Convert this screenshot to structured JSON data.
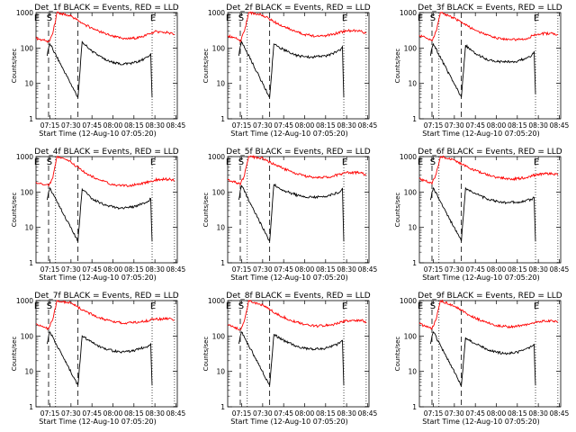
{
  "chart_data": [
    {
      "type": "line",
      "title": "Det_1f BLACK = Events, RED = LLD",
      "ylabel": "Counts/sec",
      "xlabel": "Start Time (12-Aug-10 07:05:20)",
      "yscale": "log",
      "ylim": [
        1,
        1000
      ],
      "x_ticks": [
        "07:15",
        "07:30",
        "07:45",
        "08:00",
        "08:15",
        "08:30",
        "08:45"
      ],
      "y_ticks": [
        "1",
        "10",
        "100",
        "1000"
      ],
      "markers": [
        {
          "label": "E",
          "time": "07:05"
        },
        {
          "label": "S",
          "time": "07:14"
        },
        {
          "label": "E",
          "time": "08:28"
        }
      ],
      "series": [
        {
          "name": "RED = LLD",
          "color": "#ff0000",
          "x": [
            "07:05",
            "07:09",
            "07:12",
            "07:14",
            "07:17",
            "07:20",
            "07:30",
            "07:40",
            "07:50",
            "08:00",
            "08:10",
            "08:20",
            "08:30",
            "08:40",
            "08:44"
          ],
          "y": [
            190,
            170,
            160,
            150,
            260,
            1000,
            800,
            450,
            300,
            210,
            180,
            200,
            290,
            270,
            240
          ]
        },
        {
          "name": "BLACK = Events",
          "color": "#000000",
          "x": [
            "07:13",
            "07:14",
            "07:15",
            "07:35",
            "07:38",
            "07:45",
            "07:55",
            "08:05",
            "08:15",
            "08:20",
            "08:25",
            "08:27",
            "08:28"
          ],
          "y": [
            60,
            100,
            130,
            4,
            150,
            80,
            45,
            35,
            38,
            45,
            55,
            70,
            4
          ]
        }
      ]
    },
    {
      "type": "line",
      "title": "Det_2f BLACK = Events, RED = LLD",
      "ylabel": "Counts/sec",
      "xlabel": "Start Time (12-Aug-10 07:05:20)",
      "yscale": "log",
      "ylim": [
        1,
        1000
      ],
      "x_ticks": [
        "07:15",
        "07:30",
        "07:45",
        "08:00",
        "08:15",
        "08:30",
        "08:45"
      ],
      "y_ticks": [
        "1",
        "10",
        "100",
        "1000"
      ],
      "markers": [
        {
          "label": "E",
          "time": "07:05"
        },
        {
          "label": "S",
          "time": "07:14"
        },
        {
          "label": "E",
          "time": "08:28"
        }
      ],
      "series": [
        {
          "name": "RED = LLD",
          "color": "#ff0000",
          "x": [
            "07:05",
            "07:09",
            "07:12",
            "07:14",
            "07:17",
            "07:20",
            "07:30",
            "07:40",
            "07:50",
            "08:00",
            "08:10",
            "08:20",
            "08:30",
            "08:40",
            "08:44"
          ],
          "y": [
            220,
            200,
            180,
            150,
            300,
            1000,
            850,
            500,
            330,
            240,
            210,
            240,
            310,
            300,
            260
          ]
        },
        {
          "name": "BLACK = Events",
          "color": "#000000",
          "x": [
            "07:13",
            "07:14",
            "07:15",
            "07:35",
            "07:38",
            "07:45",
            "07:55",
            "08:05",
            "08:15",
            "08:20",
            "08:25",
            "08:27",
            "08:28"
          ],
          "y": [
            60,
            110,
            150,
            4,
            130,
            90,
            60,
            55,
            60,
            70,
            85,
            110,
            4
          ]
        }
      ]
    },
    {
      "type": "line",
      "title": "Det_3f BLACK = Events, RED = LLD",
      "ylabel": "Counts/sec",
      "xlabel": "Start Time (12-Aug-10 07:05:20)",
      "yscale": "log",
      "ylim": [
        1,
        1000
      ],
      "x_ticks": [
        "07:15",
        "07:30",
        "07:45",
        "08:00",
        "08:15",
        "08:30",
        "08:45"
      ],
      "y_ticks": [
        "1",
        "10",
        "100",
        "1000"
      ],
      "markers": [
        {
          "label": "E",
          "time": "07:05"
        },
        {
          "label": "S",
          "time": "07:14"
        },
        {
          "label": "E",
          "time": "08:28"
        }
      ],
      "series": [
        {
          "name": "RED = LLD",
          "color": "#ff0000",
          "x": [
            "07:05",
            "07:09",
            "07:12",
            "07:14",
            "07:17",
            "07:20",
            "07:30",
            "07:40",
            "07:50",
            "08:00",
            "08:10",
            "08:20",
            "08:30",
            "08:40",
            "08:44"
          ],
          "y": [
            230,
            200,
            170,
            160,
            300,
            1000,
            700,
            400,
            260,
            190,
            170,
            180,
            250,
            260,
            240
          ]
        },
        {
          "name": "BLACK = Events",
          "color": "#000000",
          "x": [
            "07:13",
            "07:14",
            "07:15",
            "07:35",
            "07:38",
            "07:45",
            "07:55",
            "08:05",
            "08:15",
            "08:20",
            "08:25",
            "08:27",
            "08:28"
          ],
          "y": [
            60,
            100,
            130,
            4,
            120,
            70,
            45,
            40,
            42,
            50,
            60,
            80,
            5
          ]
        }
      ]
    },
    {
      "type": "line",
      "title": "Det_4f BLACK = Events, RED = LLD",
      "ylabel": "Counts/sec",
      "xlabel": "Start Time (12-Aug-10 07:05:20)",
      "yscale": "log",
      "ylim": [
        1,
        1000
      ],
      "x_ticks": [
        "07:15",
        "07:30",
        "07:45",
        "08:00",
        "08:15",
        "08:30",
        "08:45"
      ],
      "y_ticks": [
        "1",
        "10",
        "100",
        "1000"
      ],
      "markers": [
        {
          "label": "E",
          "time": "07:05"
        },
        {
          "label": "S",
          "time": "07:14"
        },
        {
          "label": "E",
          "time": "08:28"
        }
      ],
      "series": [
        {
          "name": "RED = LLD",
          "color": "#ff0000",
          "x": [
            "07:05",
            "07:09",
            "07:12",
            "07:14",
            "07:17",
            "07:20",
            "07:30",
            "07:40",
            "07:50",
            "08:00",
            "08:10",
            "08:20",
            "08:30",
            "08:40",
            "08:44"
          ],
          "y": [
            190,
            170,
            160,
            150,
            250,
            1000,
            700,
            350,
            220,
            160,
            150,
            170,
            220,
            230,
            210
          ]
        },
        {
          "name": "BLACK = Events",
          "color": "#000000",
          "x": [
            "07:13",
            "07:14",
            "07:15",
            "07:35",
            "07:38",
            "07:45",
            "07:55",
            "08:05",
            "08:15",
            "08:20",
            "08:25",
            "08:27",
            "08:28"
          ],
          "y": [
            60,
            100,
            130,
            4,
            120,
            65,
            42,
            35,
            38,
            45,
            55,
            65,
            4
          ]
        }
      ]
    },
    {
      "type": "line",
      "title": "Det_5f BLACK = Events, RED = LLD",
      "ylabel": "Counts/sec",
      "xlabel": "Start Time (12-Aug-10 07:05:20)",
      "yscale": "log",
      "ylim": [
        1,
        1000
      ],
      "x_ticks": [
        "07:15",
        "07:30",
        "07:45",
        "08:00",
        "08:15",
        "08:30",
        "08:45"
      ],
      "y_ticks": [
        "1",
        "10",
        "100",
        "1000"
      ],
      "markers": [
        {
          "label": "E",
          "time": "07:05"
        },
        {
          "label": "S",
          "time": "07:14"
        },
        {
          "label": "E",
          "time": "08:28"
        }
      ],
      "series": [
        {
          "name": "RED = LLD",
          "color": "#ff0000",
          "x": [
            "07:05",
            "07:09",
            "07:12",
            "07:14",
            "07:17",
            "07:20",
            "07:30",
            "07:40",
            "07:50",
            "08:00",
            "08:10",
            "08:20",
            "08:30",
            "08:40",
            "08:44"
          ],
          "y": [
            220,
            200,
            180,
            160,
            300,
            1000,
            900,
            550,
            380,
            280,
            250,
            280,
            350,
            350,
            300
          ]
        },
        {
          "name": "BLACK = Events",
          "color": "#000000",
          "x": [
            "07:13",
            "07:14",
            "07:15",
            "07:35",
            "07:38",
            "07:45",
            "07:55",
            "08:05",
            "08:15",
            "08:20",
            "08:25",
            "08:27",
            "08:28"
          ],
          "y": [
            60,
            110,
            150,
            4,
            160,
            110,
            80,
            70,
            75,
            85,
            100,
            130,
            4
          ]
        }
      ]
    },
    {
      "type": "line",
      "title": "Det_6f BLACK = Events, RED = LLD",
      "ylabel": "Counts/sec",
      "xlabel": "Start Time (12-Aug-10 07:05:20)",
      "yscale": "log",
      "ylim": [
        1,
        1000
      ],
      "x_ticks": [
        "07:15",
        "07:30",
        "07:45",
        "08:00",
        "08:15",
        "08:30",
        "08:45"
      ],
      "y_ticks": [
        "1",
        "10",
        "100",
        "1000"
      ],
      "markers": [
        {
          "label": "E",
          "time": "07:05"
        },
        {
          "label": "S",
          "time": "07:14"
        },
        {
          "label": "E",
          "time": "08:28"
        }
      ],
      "series": [
        {
          "name": "RED = LLD",
          "color": "#ff0000",
          "x": [
            "07:05",
            "07:09",
            "07:12",
            "07:14",
            "07:17",
            "07:20",
            "07:30",
            "07:40",
            "07:50",
            "08:00",
            "08:10",
            "08:20",
            "08:30",
            "08:40",
            "08:44"
          ],
          "y": [
            240,
            210,
            190,
            170,
            320,
            1000,
            800,
            480,
            340,
            260,
            230,
            250,
            320,
            330,
            300
          ]
        },
        {
          "name": "BLACK = Events",
          "color": "#000000",
          "x": [
            "07:13",
            "07:14",
            "07:15",
            "07:35",
            "07:38",
            "07:45",
            "07:55",
            "08:05",
            "08:15",
            "08:20",
            "08:25",
            "08:27",
            "08:28"
          ],
          "y": [
            60,
            100,
            130,
            4,
            130,
            90,
            60,
            50,
            52,
            55,
            62,
            70,
            4
          ]
        }
      ]
    },
    {
      "type": "line",
      "title": "Det_7f BLACK = Events, RED = LLD",
      "ylabel": "Counts/sec",
      "xlabel": "Start Time (12-Aug-10 07:05:20)",
      "yscale": "log",
      "ylim": [
        1,
        1000
      ],
      "x_ticks": [
        "07:15",
        "07:30",
        "07:45",
        "08:00",
        "08:15",
        "08:30",
        "08:45"
      ],
      "y_ticks": [
        "1",
        "10",
        "100",
        "1000"
      ],
      "markers": [
        {
          "label": "E",
          "time": "07:05"
        },
        {
          "label": "S",
          "time": "07:14"
        },
        {
          "label": "E",
          "time": "08:28"
        }
      ],
      "series": [
        {
          "name": "RED = LLD",
          "color": "#ff0000",
          "x": [
            "07:05",
            "07:09",
            "07:12",
            "07:14",
            "07:17",
            "07:20",
            "07:30",
            "07:40",
            "07:50",
            "08:00",
            "08:10",
            "08:20",
            "08:30",
            "08:40",
            "08:44"
          ],
          "y": [
            220,
            190,
            170,
            160,
            300,
            1000,
            850,
            500,
            330,
            250,
            230,
            250,
            300,
            310,
            280
          ]
        },
        {
          "name": "BLACK = Events",
          "color": "#000000",
          "x": [
            "07:13",
            "07:14",
            "07:15",
            "07:35",
            "07:38",
            "07:45",
            "07:55",
            "08:05",
            "08:15",
            "08:20",
            "08:25",
            "08:27",
            "08:28"
          ],
          "y": [
            60,
            100,
            130,
            4,
            100,
            65,
            42,
            35,
            38,
            45,
            52,
            60,
            4
          ]
        }
      ]
    },
    {
      "type": "line",
      "title": "Det_8f BLACK = Events, RED = LLD",
      "ylabel": "Counts/sec",
      "xlabel": "Start Time (12-Aug-10 07:05:20)",
      "yscale": "log",
      "ylim": [
        1,
        1000
      ],
      "x_ticks": [
        "07:15",
        "07:30",
        "07:45",
        "08:00",
        "08:15",
        "08:30",
        "08:45"
      ],
      "y_ticks": [
        "1",
        "10",
        "100",
        "1000"
      ],
      "markers": [
        {
          "label": "E",
          "time": "07:05"
        },
        {
          "label": "S",
          "time": "07:14"
        },
        {
          "label": "E",
          "time": "08:28"
        }
      ],
      "series": [
        {
          "name": "RED = LLD",
          "color": "#ff0000",
          "x": [
            "07:05",
            "07:09",
            "07:12",
            "07:14",
            "07:17",
            "07:20",
            "07:30",
            "07:40",
            "07:50",
            "08:00",
            "08:10",
            "08:20",
            "08:30",
            "08:40",
            "08:44"
          ],
          "y": [
            200,
            180,
            160,
            150,
            280,
            1000,
            750,
            420,
            280,
            210,
            190,
            210,
            270,
            280,
            250
          ]
        },
        {
          "name": "BLACK = Events",
          "color": "#000000",
          "x": [
            "07:13",
            "07:14",
            "07:15",
            "07:35",
            "07:38",
            "07:45",
            "07:55",
            "08:05",
            "08:15",
            "08:20",
            "08:25",
            "08:27",
            "08:28"
          ],
          "y": [
            60,
            100,
            130,
            4,
            110,
            75,
            50,
            42,
            45,
            52,
            62,
            75,
            4
          ]
        }
      ]
    },
    {
      "type": "line",
      "title": "Det_9f BLACK = Events, RED = LLD",
      "ylabel": "Counts/sec",
      "xlabel": "Start Time (12-Aug-10 07:05:20)",
      "yscale": "log",
      "ylim": [
        1,
        1000
      ],
      "x_ticks": [
        "07:15",
        "07:30",
        "07:45",
        "08:00",
        "08:15",
        "08:30",
        "08:45"
      ],
      "y_ticks": [
        "1",
        "10",
        "100",
        "1000"
      ],
      "markers": [
        {
          "label": "E",
          "time": "07:05"
        },
        {
          "label": "S",
          "time": "07:14"
        },
        {
          "label": "E",
          "time": "08:28"
        }
      ],
      "series": [
        {
          "name": "RED = LLD",
          "color": "#ff0000",
          "x": [
            "07:05",
            "07:09",
            "07:12",
            "07:14",
            "07:17",
            "07:20",
            "07:30",
            "07:40",
            "07:50",
            "08:00",
            "08:10",
            "08:20",
            "08:30",
            "08:40",
            "08:44"
          ],
          "y": [
            220,
            190,
            170,
            160,
            300,
            1000,
            700,
            400,
            260,
            200,
            180,
            200,
            260,
            270,
            250
          ]
        },
        {
          "name": "BLACK = Events",
          "color": "#000000",
          "x": [
            "07:13",
            "07:14",
            "07:15",
            "07:35",
            "07:38",
            "07:45",
            "07:55",
            "08:05",
            "08:15",
            "08:20",
            "08:25",
            "08:27",
            "08:28"
          ],
          "y": [
            60,
            100,
            130,
            4,
            90,
            60,
            40,
            32,
            35,
            42,
            50,
            58,
            4
          ]
        }
      ]
    }
  ]
}
